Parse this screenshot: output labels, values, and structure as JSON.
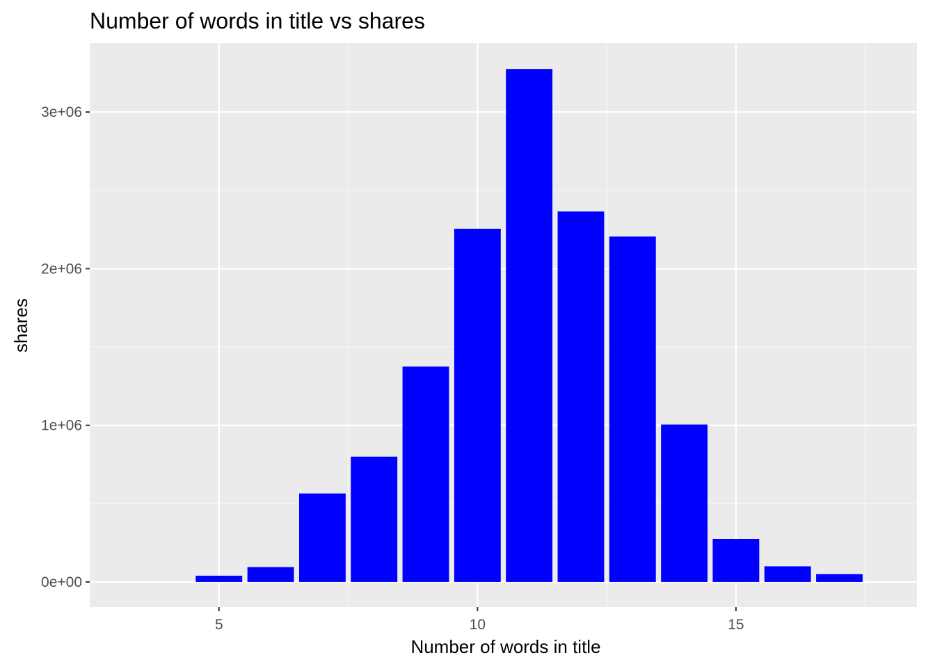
{
  "chart_data": {
    "type": "bar",
    "title": "Number of words in title vs shares",
    "xlabel": "Number of words in title",
    "ylabel": "shares",
    "x": [
      5,
      6,
      7,
      8,
      9,
      10,
      11,
      12,
      13,
      14,
      15,
      16,
      17
    ],
    "values": [
      40000,
      95000,
      565000,
      800000,
      1375000,
      2255000,
      3275000,
      2365000,
      2205000,
      1005000,
      275000,
      100000,
      50000
    ],
    "xlim": [
      2.5,
      18.5
    ],
    "ylim": [
      -160000,
      3440000
    ],
    "x_ticks": [
      5,
      10,
      15
    ],
    "x_tick_labels": [
      "5",
      "10",
      "15"
    ],
    "y_ticks": [
      0,
      1000000,
      2000000,
      3000000
    ],
    "y_tick_labels": [
      "0e+00",
      "1e+06",
      "2e+06",
      "3e+06"
    ],
    "x_minor_ticks": [
      2.5,
      7.5,
      12.5,
      17.5
    ],
    "y_minor_ticks": [
      500000,
      1500000,
      2500000
    ],
    "bar_width": 0.9,
    "grid": true,
    "colors": {
      "bar": "#0000ff",
      "panel_background": "#ebebeb",
      "grid_major": "#ffffff",
      "grid_minor": "#f7f7f7"
    }
  }
}
